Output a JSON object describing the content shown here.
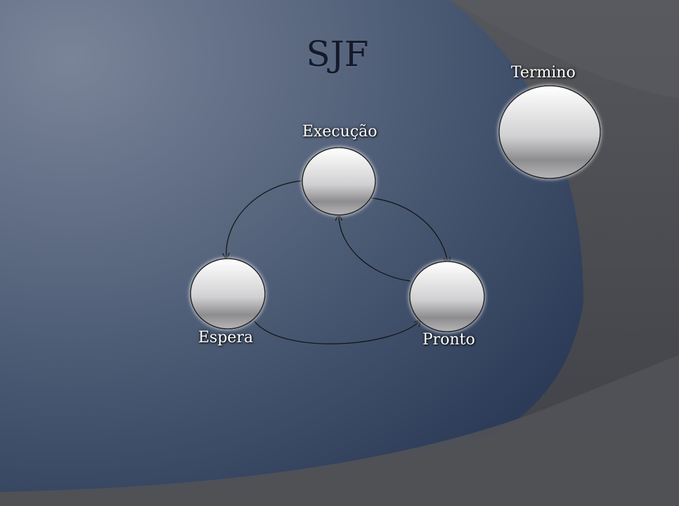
{
  "title": "SJF",
  "states": {
    "execucao": "Execução",
    "espera": "Espera",
    "pronto": "Pronto",
    "termino": "Termino"
  },
  "colors": {
    "background_light": "#7a8499",
    "background_dark": "#2e3d58",
    "frame_gray": "#4a4c51",
    "title": "#141a2a",
    "label": "#ffffff",
    "arrow": "#111111"
  }
}
